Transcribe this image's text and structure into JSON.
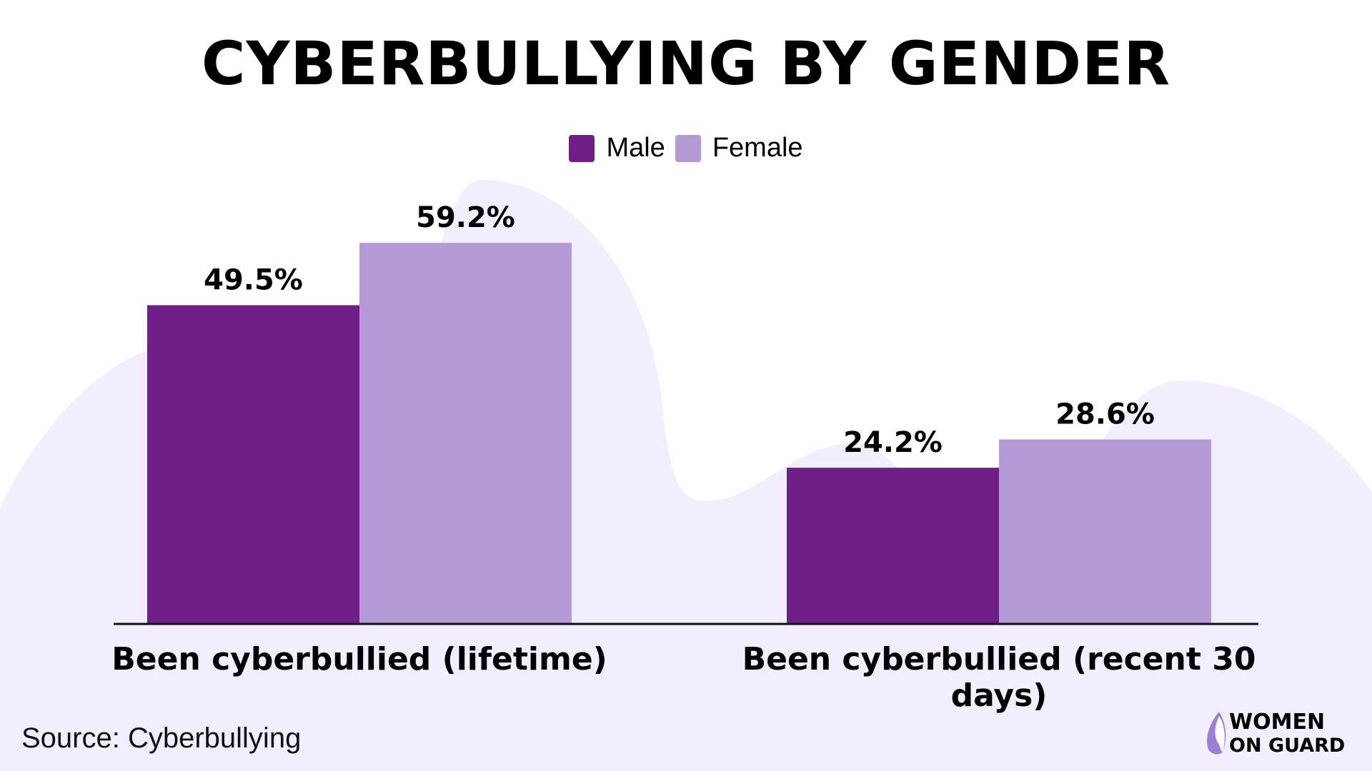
{
  "chart_data": {
    "type": "bar",
    "title": "CYBERBULLYING BY GENDER",
    "categories": [
      "Been cyberbullied (lifetime)",
      "Been cyberbullied (recent 30 days)"
    ],
    "series": [
      {
        "name": "Male",
        "values": [
          49.5,
          24.2
        ],
        "labels": [
          "49.5%",
          "24.2%"
        ],
        "color": "#6f1f87"
      },
      {
        "name": "Female",
        "values": [
          59.2,
          28.6
        ],
        "labels": [
          "59.2%",
          "28.6%"
        ],
        "color": "#b49bd6"
      }
    ],
    "xlabel": "",
    "ylabel": "",
    "ylim": [
      0,
      60
    ],
    "grid": false,
    "legend_position": "top-center",
    "value_axis_shown": false
  },
  "source": "Source: Cyberbullying",
  "logo": {
    "line1": "WOMEN",
    "line2": "ON GUARD"
  },
  "colors": {
    "background_blob": "#f2eefd",
    "axis": "#111111"
  }
}
